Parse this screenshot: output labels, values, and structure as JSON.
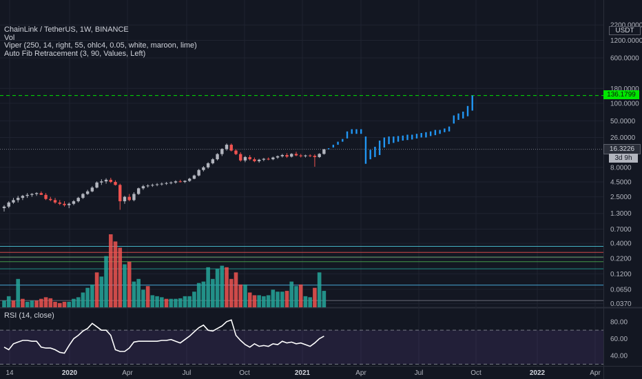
{
  "legend": {
    "title": "ChainLink / TetherUS, 1W, BINANCE",
    "vol": "Vol",
    "viper": "Viper (250, 14, right, 55, ohlc4, 0.05, white, maroon, lime)",
    "fib": "Auto Fib Retracement (3, 90, Values, Left)"
  },
  "rsi_label": "RSI (14, close)",
  "currency": "USDT",
  "price_tags": {
    "projection": "136.1799",
    "last": "16.3226",
    "countdown": "3d 9h"
  },
  "colors": {
    "background": "#131722",
    "up": "#b2b5be",
    "down": "#ef5350",
    "projection": "#2196f3",
    "fib_line": "#00e600",
    "vol_up": "#26a69a",
    "vol_down": "#ef5350",
    "rsi_line": "#ffffff",
    "rsi_band": "#7e57c2"
  },
  "chart_data": [
    {
      "type": "candlestick",
      "title": "ChainLink / TetherUS, 1W, BINANCE",
      "scale": "log",
      "y_ticks": [
        "2200.0000",
        "1200.0000",
        "600.0000",
        "180.0000",
        "100.0000",
        "50.0000",
        "26.0000",
        "8.0000",
        "4.5000",
        "2.5000",
        "1.3000",
        "0.7000",
        "0.4000",
        "0.2200",
        "0.1200",
        "0.0650",
        "0.0370"
      ],
      "x_ticks": [
        "14",
        "2020",
        "Apr",
        "Jul",
        "Oct",
        "2021",
        "Apr",
        "Jul",
        "Oct",
        "2022",
        "Apr"
      ],
      "y_range": [
        0.032,
        2400
      ],
      "horizontal_level": 136.18,
      "candles_start_week": 0,
      "candles": [
        [
          1.6,
          1.8,
          1.4,
          1.7
        ],
        [
          1.7,
          2.1,
          1.6,
          2.0
        ],
        [
          2.0,
          2.4,
          1.9,
          2.2
        ],
        [
          2.2,
          2.6,
          2.0,
          2.4
        ],
        [
          2.4,
          2.7,
          2.2,
          2.6
        ],
        [
          2.6,
          2.9,
          2.4,
          2.7
        ],
        [
          2.7,
          2.9,
          2.5,
          2.8
        ],
        [
          2.8,
          3.0,
          2.6,
          2.9
        ],
        [
          2.9,
          3.1,
          2.7,
          2.7
        ],
        [
          2.7,
          2.9,
          2.2,
          2.3
        ],
        [
          2.3,
          2.5,
          2.1,
          2.2
        ],
        [
          2.2,
          2.4,
          1.9,
          2.0
        ],
        [
          2.0,
          2.2,
          1.8,
          1.9
        ],
        [
          1.9,
          2.1,
          1.7,
          1.8
        ],
        [
          1.8,
          2.0,
          1.6,
          1.9
        ],
        [
          1.9,
          2.2,
          1.8,
          2.1
        ],
        [
          2.1,
          2.5,
          2.0,
          2.4
        ],
        [
          2.4,
          2.9,
          2.3,
          2.8
        ],
        [
          2.8,
          3.3,
          2.7,
          3.1
        ],
        [
          3.1,
          3.8,
          3.0,
          3.6
        ],
        [
          3.6,
          4.6,
          3.5,
          4.4
        ],
        [
          4.4,
          5.0,
          4.0,
          4.6
        ],
        [
          4.6,
          5.2,
          4.2,
          4.9
        ],
        [
          4.9,
          5.3,
          4.3,
          4.5
        ],
        [
          4.5,
          4.8,
          3.9,
          4.0
        ],
        [
          4.0,
          4.2,
          1.5,
          2.1
        ],
        [
          2.1,
          2.6,
          1.9,
          2.5
        ],
        [
          2.5,
          2.8,
          2.1,
          2.2
        ],
        [
          2.2,
          3.0,
          2.1,
          2.8
        ],
        [
          2.8,
          3.6,
          2.7,
          3.5
        ],
        [
          3.5,
          4.0,
          3.3,
          3.8
        ],
        [
          3.8,
          4.1,
          3.6,
          3.9
        ],
        [
          3.9,
          4.2,
          3.7,
          4.0
        ],
        [
          4.0,
          4.3,
          3.8,
          4.1
        ],
        [
          4.1,
          4.4,
          3.9,
          4.2
        ],
        [
          4.2,
          4.5,
          4.0,
          4.3
        ],
        [
          4.3,
          4.6,
          4.1,
          4.4
        ],
        [
          4.4,
          4.8,
          4.2,
          4.6
        ],
        [
          4.6,
          4.9,
          4.4,
          4.5
        ],
        [
          4.5,
          4.8,
          4.3,
          4.7
        ],
        [
          4.7,
          5.3,
          4.5,
          5.1
        ],
        [
          5.1,
          6.0,
          5.0,
          5.8
        ],
        [
          5.8,
          7.5,
          5.6,
          7.2
        ],
        [
          7.2,
          8.4,
          6.8,
          8.0
        ],
        [
          8.0,
          9.8,
          7.6,
          9.4
        ],
        [
          9.4,
          11.5,
          9.0,
          11.0
        ],
        [
          11.0,
          14.0,
          10.5,
          13.5
        ],
        [
          13.5,
          17.0,
          12.5,
          16.5
        ],
        [
          16.5,
          20.5,
          15.5,
          19.5
        ],
        [
          19.5,
          20.5,
          15.0,
          15.5
        ],
        [
          15.5,
          16.5,
          13.0,
          13.5
        ],
        [
          13.5,
          14.5,
          10.0,
          10.5
        ],
        [
          10.5,
          12.5,
          9.8,
          12.0
        ],
        [
          12.0,
          13.0,
          10.5,
          11.0
        ],
        [
          11.0,
          11.8,
          9.8,
          10.2
        ],
        [
          10.2,
          11.2,
          9.6,
          10.8
        ],
        [
          10.8,
          11.6,
          10.2,
          11.2
        ],
        [
          11.2,
          11.8,
          10.6,
          11.0
        ],
        [
          11.0,
          12.2,
          10.6,
          11.8
        ],
        [
          11.8,
          12.8,
          11.2,
          12.4
        ],
        [
          12.4,
          13.6,
          11.8,
          13.0
        ],
        [
          13.0,
          14.0,
          11.6,
          12.2
        ],
        [
          12.2,
          14.0,
          11.8,
          13.6
        ],
        [
          13.6,
          14.8,
          12.4,
          12.8
        ],
        [
          12.8,
          13.6,
          11.8,
          12.4
        ],
        [
          12.4,
          13.2,
          11.8,
          12.8
        ],
        [
          12.8,
          13.4,
          12.0,
          12.6
        ],
        [
          12.6,
          13.4,
          8.2,
          12.0
        ],
        [
          12.0,
          14.0,
          11.6,
          13.6
        ],
        [
          13.6,
          16.5,
          13.2,
          16.3
        ]
      ],
      "projection_bars": [
        [
          16.3,
          17.0
        ],
        [
          17.5,
          19.5
        ],
        [
          19.5,
          22.0
        ],
        [
          22.0,
          24.5
        ],
        [
          25.0,
          33.0
        ],
        [
          30.0,
          36.0
        ],
        [
          30.0,
          36.0
        ],
        [
          30.0,
          36.0
        ],
        [
          9.2,
          27.0
        ],
        [
          11.0,
          16.0
        ],
        [
          12.0,
          18.0
        ],
        [
          13.0,
          23.0
        ],
        [
          17.5,
          26.0
        ],
        [
          20.0,
          27.0
        ],
        [
          21.0,
          27.0
        ],
        [
          22.0,
          27.5
        ],
        [
          23.0,
          28.0
        ],
        [
          23.5,
          29.0
        ],
        [
          24.0,
          29.0
        ],
        [
          25.0,
          30.0
        ],
        [
          26.0,
          31.0
        ],
        [
          26.0,
          32.0
        ],
        [
          27.5,
          33.0
        ],
        [
          28.5,
          35.0
        ],
        [
          30.0,
          35.0
        ],
        [
          32.0,
          37.0
        ],
        [
          33.0,
          40.0
        ],
        [
          45.0,
          62.0
        ],
        [
          52.0,
          67.0
        ],
        [
          55.0,
          72.0
        ],
        [
          60.0,
          90.0
        ],
        [
          75.0,
          136.0
        ]
      ]
    },
    {
      "type": "bar",
      "title": "Vol",
      "up_down": [
        "u",
        "u",
        "d",
        "u",
        "d",
        "u",
        "u",
        "d",
        "d",
        "d",
        "d",
        "d",
        "d",
        "d",
        "u",
        "u",
        "u",
        "u",
        "u",
        "u",
        "d",
        "u",
        "u",
        "d",
        "d",
        "d",
        "u",
        "d",
        "u",
        "u",
        "u",
        "d",
        "u",
        "u",
        "u",
        "d",
        "u",
        "u",
        "u",
        "u",
        "u",
        "u",
        "u",
        "u",
        "u",
        "u",
        "u",
        "u",
        "d",
        "d",
        "d",
        "d",
        "u",
        "d",
        "d",
        "u",
        "u",
        "u",
        "u",
        "u",
        "u",
        "d",
        "u",
        "u",
        "d",
        "u",
        "u",
        "d",
        "u",
        "u"
      ],
      "values": [
        0.042,
        0.05,
        0.042,
        0.1,
        0.045,
        0.04,
        0.042,
        0.042,
        0.045,
        0.048,
        0.046,
        0.04,
        0.038,
        0.04,
        0.04,
        0.045,
        0.048,
        0.058,
        0.07,
        0.08,
        0.13,
        0.11,
        0.25,
        0.6,
        0.45,
        0.35,
        0.18,
        0.2,
        0.09,
        0.1,
        0.065,
        0.075,
        0.052,
        0.05,
        0.048,
        0.045,
        0.045,
        0.045,
        0.046,
        0.05,
        0.05,
        0.06,
        0.085,
        0.09,
        0.16,
        0.1,
        0.15,
        0.17,
        0.16,
        0.1,
        0.13,
        0.08,
        0.08,
        0.058,
        0.052,
        0.052,
        0.05,
        0.052,
        0.065,
        0.06,
        0.06,
        0.062,
        0.09,
        0.075,
        0.08,
        0.05,
        0.048,
        0.07,
        0.13,
        0.062
      ],
      "fib_levels": [
        {
          "v": 0.37,
          "c": "#4dd0e1"
        },
        {
          "v": 0.29,
          "c": "#ef5350"
        },
        {
          "v": 0.24,
          "c": "#81c784"
        },
        {
          "v": 0.2,
          "c": "#4caf50"
        },
        {
          "v": 0.15,
          "c": "#26a69a"
        },
        {
          "v": 0.078,
          "c": "#4fc3f7"
        },
        {
          "v": 0.042,
          "c": "#787b86"
        }
      ]
    },
    {
      "type": "line",
      "title": "RSI (14, close)",
      "y_ticks": [
        "80.00",
        "60.00",
        "40.00"
      ],
      "band": [
        30,
        70
      ],
      "values": [
        50,
        47,
        54,
        56,
        58,
        58,
        57,
        57,
        50,
        49,
        49,
        47,
        44,
        43,
        52,
        60,
        64,
        69,
        72,
        78,
        74,
        70,
        70,
        64,
        47,
        45,
        45,
        49,
        56,
        57,
        57,
        57,
        57,
        57,
        58,
        58,
        59,
        57,
        55,
        59,
        63,
        68,
        73,
        76,
        70,
        69,
        72,
        75,
        80,
        82,
        64,
        58,
        53,
        50,
        54,
        51,
        52,
        51,
        54,
        53,
        57,
        55,
        56,
        54,
        55,
        53,
        51,
        55,
        60,
        63
      ]
    }
  ]
}
